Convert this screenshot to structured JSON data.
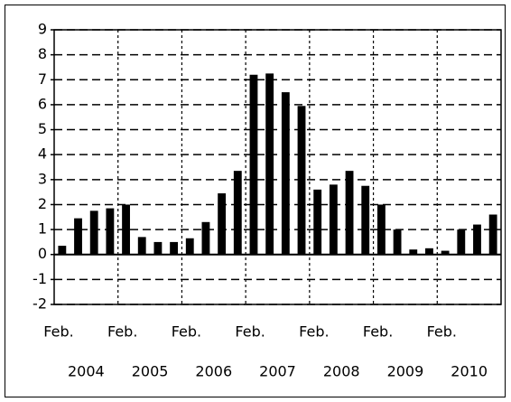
{
  "chart_data": {
    "type": "bar",
    "categories": [
      "Feb.",
      null,
      null,
      null,
      "Feb.",
      null,
      null,
      null,
      "Feb.",
      null,
      null,
      null,
      "Feb.",
      null,
      null,
      null,
      "Feb.",
      null,
      null,
      null,
      "Feb.",
      null,
      null,
      null,
      "Feb.",
      null,
      null,
      null
    ],
    "years": [
      "2004",
      "2005",
      "2006",
      "2007",
      "2008",
      "2009",
      "2010"
    ],
    "values": [
      0.35,
      1.45,
      1.75,
      1.85,
      2.0,
      0.7,
      0.5,
      0.5,
      0.65,
      1.3,
      2.45,
      3.35,
      7.2,
      7.25,
      6.5,
      5.95,
      2.6,
      2.8,
      3.35,
      2.75,
      2.0,
      1.0,
      0.2,
      0.25,
      0.15,
      1.0,
      1.2,
      1.6
    ],
    "color": "#000000",
    "ylim": [
      -2,
      9
    ],
    "yticks": [
      -2,
      -1,
      0,
      1,
      2,
      3,
      4,
      5,
      6,
      7,
      8,
      9
    ],
    "grid": true
  }
}
